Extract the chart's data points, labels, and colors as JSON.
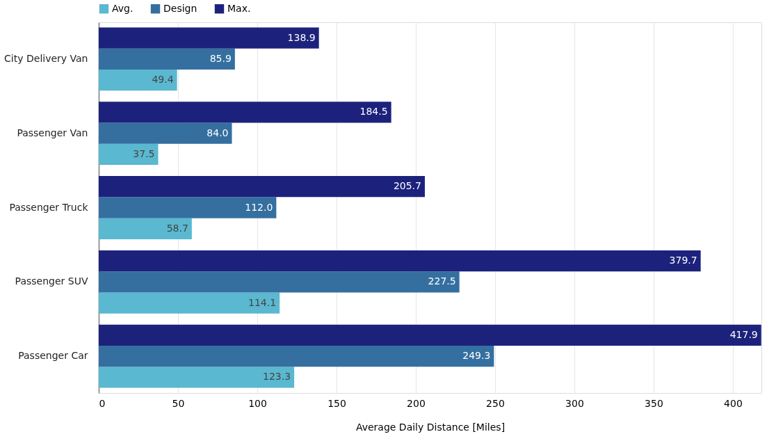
{
  "chart_data": {
    "type": "bar",
    "orientation": "horizontal",
    "xlabel": "Average Daily Distance [Miles]",
    "categories": [
      "City Delivery Van",
      "Passenger Van",
      "Passenger Truck",
      "Passenger SUV",
      "Passenger Car"
    ],
    "series": [
      {
        "name": "Avg.",
        "color": "#5ab8d0",
        "values": [
          49.4,
          37.5,
          58.7,
          114.1,
          123.3
        ],
        "value_labels": [
          "49.4",
          "37.5",
          "58.7",
          "114.1",
          "123.3"
        ]
      },
      {
        "name": "Design",
        "color": "#356fa0",
        "values": [
          85.9,
          84.0,
          112.0,
          227.5,
          249.3
        ],
        "value_labels": [
          "85.9",
          "84.0",
          "112.0",
          "227.5",
          "249.3"
        ]
      },
      {
        "name": "Max.",
        "color": "#1c227c",
        "values": [
          138.9,
          184.5,
          205.7,
          379.7,
          417.9
        ],
        "value_labels": [
          "138.9",
          "184.5",
          "205.7",
          "379.7",
          "417.9"
        ]
      }
    ],
    "xlim": [
      0,
      418
    ],
    "xticks": [
      0,
      50,
      100,
      150,
      200,
      250,
      300,
      350,
      400
    ],
    "grid": "x",
    "legend": "top"
  }
}
